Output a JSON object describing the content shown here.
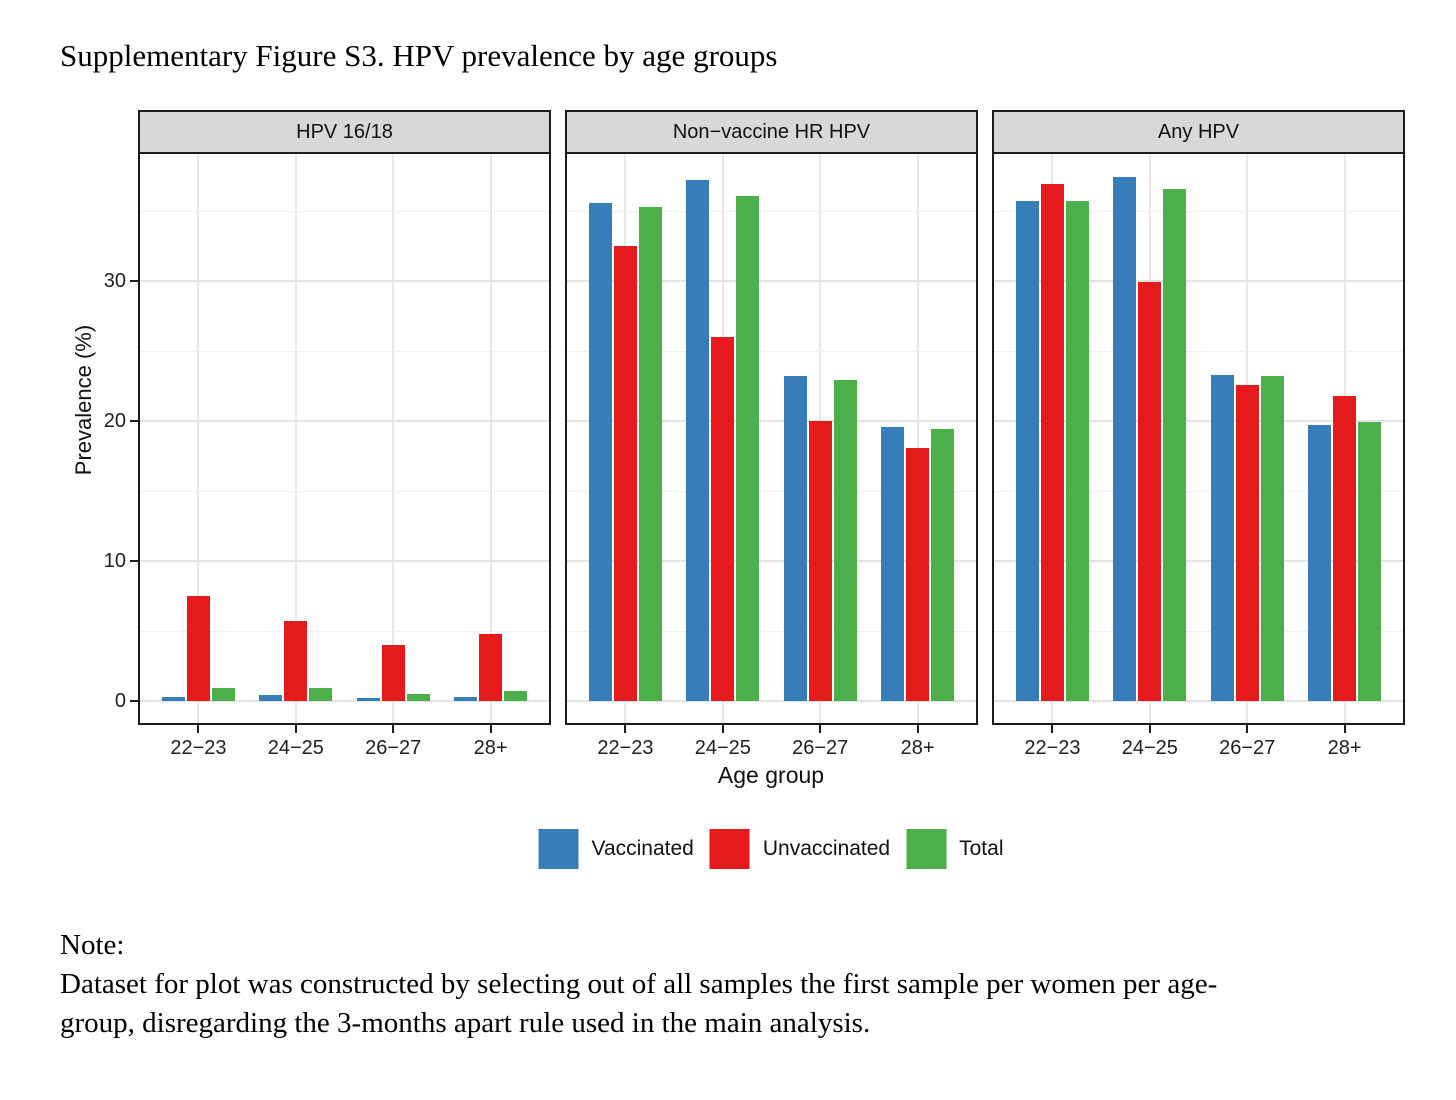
{
  "title": "Supplementary Figure S3. HPV prevalence by age groups",
  "chart_data": {
    "type": "bar",
    "categories": [
      "22−23",
      "24−25",
      "26−27",
      "28+"
    ],
    "panels": [
      {
        "title": "HPV 16/18",
        "series": [
          {
            "name": "Vaccinated",
            "color": "#377EB8",
            "values": [
              0.3,
              0.4,
              0.2,
              0.3
            ]
          },
          {
            "name": "Unvaccinated",
            "color": "#E41A1C",
            "values": [
              7.5,
              5.7,
              4.0,
              4.8
            ]
          },
          {
            "name": "Total",
            "color": "#4DAF4A",
            "values": [
              0.9,
              0.9,
              0.5,
              0.7
            ]
          }
        ]
      },
      {
        "title": "Non−vaccine HR HPV",
        "series": [
          {
            "name": "Vaccinated",
            "color": "#377EB8",
            "values": [
              35.6,
              37.2,
              23.2,
              19.6
            ]
          },
          {
            "name": "Unvaccinated",
            "color": "#E41A1C",
            "values": [
              32.5,
              26.0,
              20.0,
              18.1
            ]
          },
          {
            "name": "Total",
            "color": "#4DAF4A",
            "values": [
              35.3,
              36.1,
              22.9,
              19.4
            ]
          }
        ]
      },
      {
        "title": "Any HPV",
        "series": [
          {
            "name": "Vaccinated",
            "color": "#377EB8",
            "values": [
              35.7,
              37.4,
              23.3,
              19.7
            ]
          },
          {
            "name": "Unvaccinated",
            "color": "#E41A1C",
            "values": [
              36.9,
              29.9,
              22.6,
              21.8
            ]
          },
          {
            "name": "Total",
            "color": "#4DAF4A",
            "values": [
              35.7,
              36.6,
              23.2,
              19.9
            ]
          }
        ]
      }
    ],
    "xlabel": "Age group",
    "ylabel": "Prevalence (%)",
    "yticks": [
      0,
      10,
      20,
      30
    ],
    "yticks_minor": [
      5,
      15,
      25,
      35
    ],
    "ylim": [
      0,
      39
    ],
    "grid": true,
    "legend_position": "bottom"
  },
  "legend": {
    "items": [
      {
        "label": "Vaccinated",
        "color": "#377EB8"
      },
      {
        "label": "Unvaccinated",
        "color": "#E41A1C"
      },
      {
        "label": "Total",
        "color": "#4DAF4A"
      }
    ]
  },
  "note": {
    "heading": "Note:",
    "lines": [
      "Dataset for plot was constructed by selecting out of all samples the first sample per women per age-",
      "group, disregarding the 3-months apart rule used in the main analysis."
    ]
  }
}
